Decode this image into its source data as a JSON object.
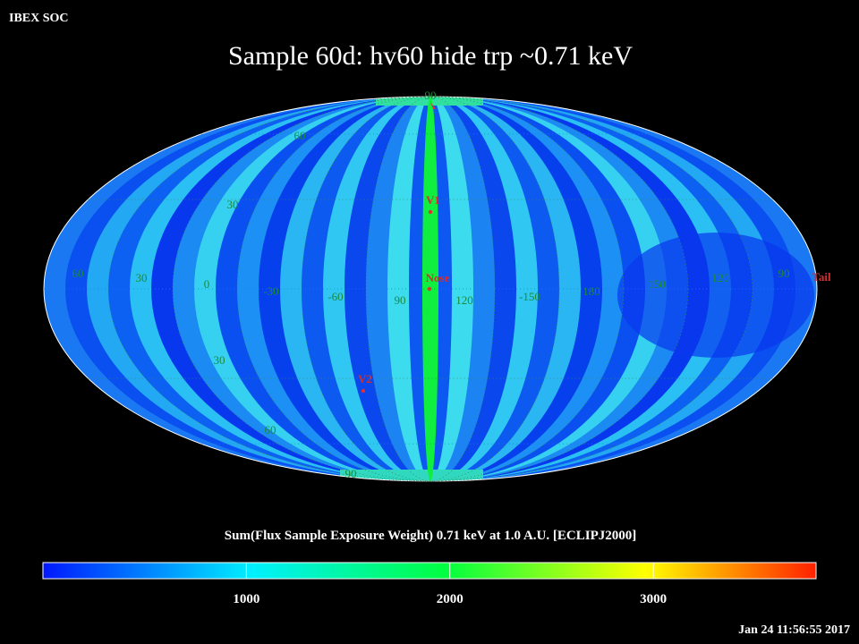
{
  "header": "IBEX SOC",
  "title": "Sample 60d: hv60 hide trp ~0.71 keV",
  "map": {
    "longitude_labels": [
      "60",
      "30",
      "0",
      "-30",
      "-60",
      "90",
      "120",
      "-150",
      "180",
      "150",
      "120",
      "90"
    ],
    "latitude_labels": [
      "90",
      "60",
      "30",
      "30",
      "60",
      "90"
    ],
    "markers": [
      "V1",
      "Nose",
      "V2",
      "Tail"
    ]
  },
  "colorbar": {
    "label": "Sum(Flux Sample Exposure Weight)  0.71 keV at 1.0 A.U. [ECLIPJ2000]",
    "range": [
      0,
      3800
    ],
    "ticks": [
      1000,
      2000,
      3000
    ]
  },
  "timestamp": "Jan 24 11:56:55 2017"
}
